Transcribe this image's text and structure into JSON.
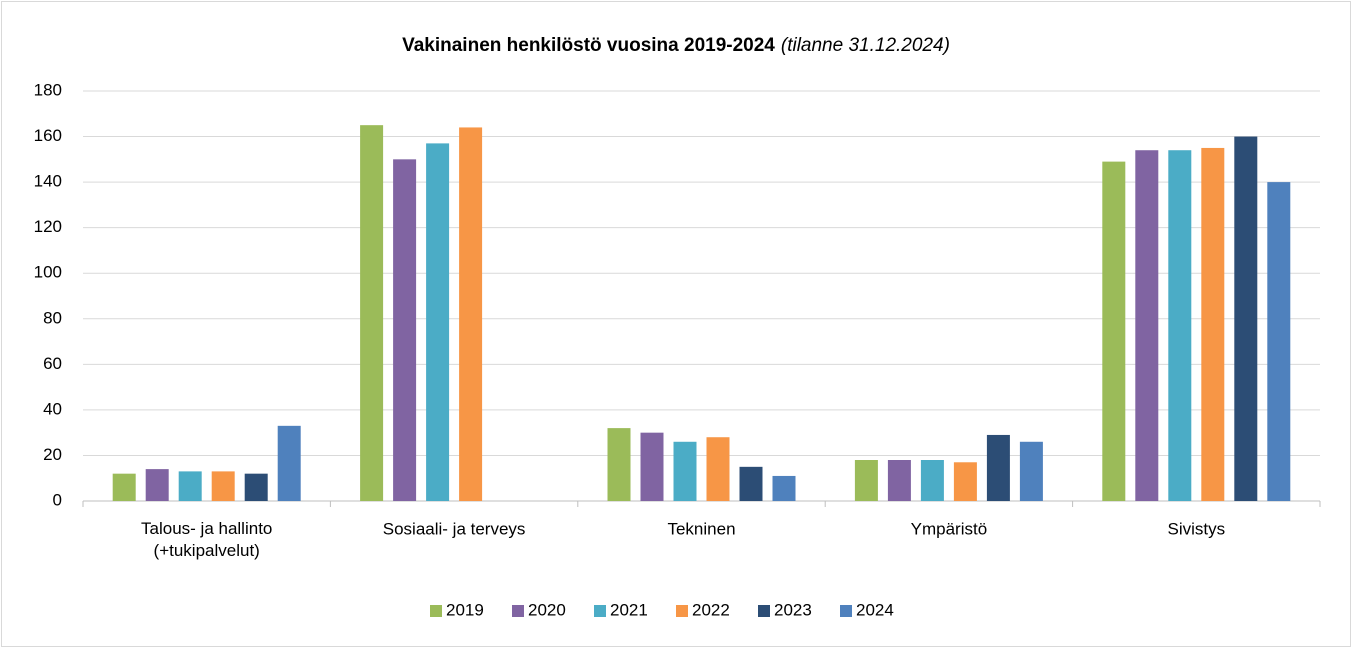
{
  "chart_data": {
    "type": "bar",
    "title": "Vakinainen henkilöstö vuosina 2019-2024",
    "subtitle": "(tilanne 31.12.2024)",
    "categories": [
      "Talous- ja hallinto\n(+tukipalvelut)",
      "Sosiaali- ja terveys",
      "Tekninen",
      "Ympäristö",
      "Sivistys"
    ],
    "series": [
      {
        "name": "2019",
        "color": "#9bbb59",
        "values": [
          12,
          165,
          32,
          18,
          149
        ]
      },
      {
        "name": "2020",
        "color": "#8064a2",
        "values": [
          14,
          150,
          30,
          18,
          154
        ]
      },
      {
        "name": "2021",
        "color": "#4bacc6",
        "values": [
          13,
          157,
          26,
          18,
          154
        ]
      },
      {
        "name": "2022",
        "color": "#f79646",
        "values": [
          13,
          164,
          28,
          17,
          155
        ]
      },
      {
        "name": "2023",
        "color": "#2c4d75",
        "values": [
          12,
          null,
          15,
          29,
          160
        ]
      },
      {
        "name": "2024",
        "color": "#4f81bd",
        "values": [
          33,
          null,
          11,
          26,
          140
        ]
      }
    ],
    "ylim": [
      0,
      180
    ],
    "yticks": [
      0,
      20,
      40,
      60,
      80,
      100,
      120,
      140,
      160,
      180
    ],
    "grid": true,
    "legend": "bottom"
  }
}
